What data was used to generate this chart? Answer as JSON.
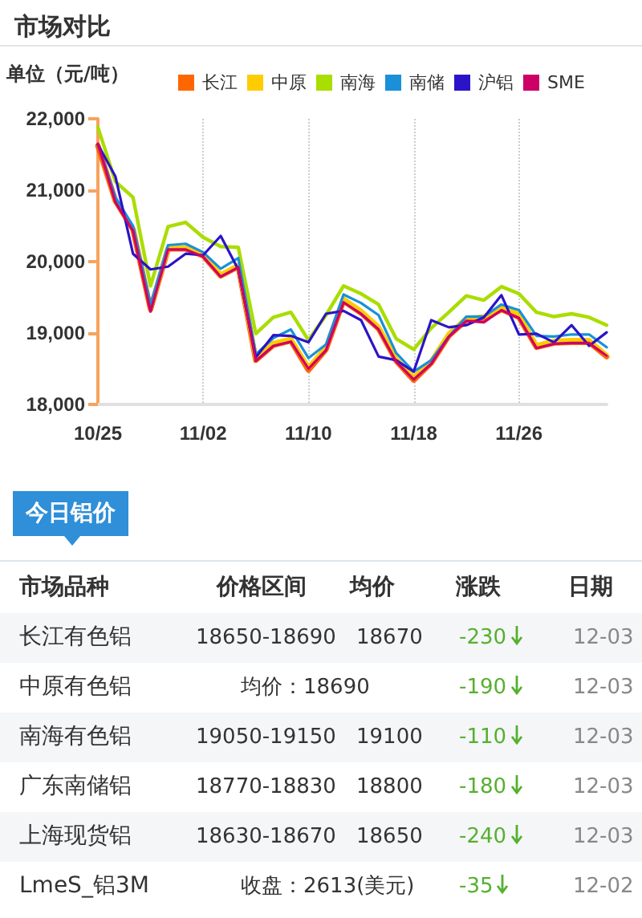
{
  "chart_data": [
    {
      "type": "line",
      "title": "市场对比",
      "ylabel": "单位（元/吨）",
      "categories": [
        "10/25",
        null,
        null,
        null,
        null,
        null,
        "11/02",
        null,
        null,
        null,
        null,
        null,
        "11/10",
        null,
        null,
        null,
        null,
        null,
        "11/18",
        null,
        null,
        null,
        null,
        null,
        "11/26",
        null,
        null,
        null,
        null,
        null
      ],
      "series": [
        {
          "name": "长江",
          "color": "#ff6600",
          "values": [
            21620,
            20850,
            20450,
            19330,
            20180,
            20180,
            20080,
            19800,
            19930,
            18620,
            18830,
            18890,
            18480,
            18770,
            19450,
            19280,
            19060,
            18610,
            18340,
            18580,
            18960,
            19180,
            19200,
            19330,
            19220,
            18800,
            18860,
            18870,
            18870,
            18670
          ]
        },
        {
          "name": "中原",
          "color": "#ffcc00",
          "values": [
            null,
            null,
            null,
            19340,
            20190,
            20200,
            20100,
            19820,
            19950,
            18640,
            18860,
            18920,
            18520,
            18800,
            19480,
            19310,
            19090,
            18640,
            18380,
            18610,
            18990,
            19210,
            19230,
            19370,
            19260,
            18830,
            18890,
            18900,
            18900,
            18690
          ]
        },
        {
          "name": "南海",
          "color": "#aadd00",
          "values": [
            21880,
            21120,
            20900,
            19660,
            20490,
            20550,
            20340,
            20210,
            20200,
            18990,
            19220,
            19290,
            18900,
            19250,
            19660,
            19550,
            19400,
            18920,
            18770,
            19070,
            19290,
            19520,
            19460,
            19650,
            19550,
            19290,
            19230,
            19270,
            19220,
            19110
          ]
        },
        {
          "name": "南储",
          "color": "#1a90d8",
          "values": [
            21640,
            20900,
            20500,
            19400,
            20230,
            20250,
            20130,
            19900,
            20050,
            18700,
            18930,
            19050,
            18650,
            18840,
            19540,
            19420,
            19250,
            18720,
            18460,
            18620,
            18950,
            19230,
            19230,
            19400,
            19320,
            18960,
            18950,
            18980,
            18980,
            18800
          ]
        },
        {
          "name": "沪铝",
          "color": "#2b14c8",
          "values": [
            21640,
            21190,
            20110,
            19890,
            19930,
            20110,
            20090,
            20360,
            19890,
            18660,
            18970,
            18960,
            18870,
            19270,
            19310,
            19180,
            18670,
            18620,
            18460,
            19180,
            19080,
            19110,
            19220,
            19530,
            18980,
            18990,
            18870,
            19110,
            18820,
            19010
          ]
        },
        {
          "name": "SME",
          "color": "#cc0066",
          "values": [
            21650,
            20830,
            20430,
            19300,
            20170,
            20170,
            20070,
            19790,
            19920,
            18610,
            18820,
            18880,
            18500,
            18760,
            19430,
            19270,
            19050,
            18600,
            18350,
            18570,
            18950,
            19170,
            19150,
            19320,
            19210,
            18790,
            18850,
            18860,
            18860,
            18680
          ]
        }
      ],
      "ylim": [
        18000,
        22000
      ],
      "yticks": [
        {
          "value": 18000,
          "label": "18,000"
        },
        {
          "value": 19000,
          "label": "19,000"
        },
        {
          "value": 20000,
          "label": "20,000"
        },
        {
          "value": 21000,
          "label": "21,000"
        },
        {
          "value": 22000,
          "label": "22,000"
        }
      ],
      "grid": "x",
      "legend": "top",
      "marker": "none",
      "line_style": "solid"
    },
    {
      "type": "other",
      "title": "今日铝价",
      "categories": [
        "市场品种",
        "价格区间",
        "均价",
        "涨跌",
        "日期"
      ],
      "y_categories": [
        "长江有色铝",
        "中原有色铝",
        "南海有色铝",
        "广东南储铝",
        "上海现货铝",
        "LmeS_铝3M"
      ],
      "cell_labels": [
        [
          "18650-18690",
          "18670",
          "-230",
          "12-03"
        ],
        [
          "均价：18690",
          null,
          "-190",
          "12-03"
        ],
        [
          "19050-19150",
          "19100",
          "-110",
          "12-03"
        ],
        [
          "18770-18830",
          "18800",
          "-180",
          "12-03"
        ],
        [
          "18630-18670",
          "18650",
          "-240",
          "12-03"
        ],
        [
          "收盘：2613(美元)",
          null,
          "-35",
          "12-02"
        ]
      ]
    }
  ]
}
